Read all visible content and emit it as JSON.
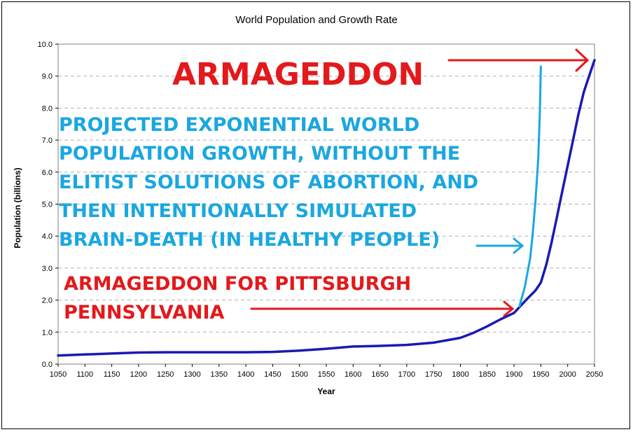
{
  "chart_data": {
    "type": "line",
    "title": "World Population and Growth Rate",
    "xlabel": "Year",
    "ylabel": "Population (billions)",
    "xlim": [
      1050,
      2050
    ],
    "ylim": [
      0,
      10
    ],
    "grid": true,
    "x_ticks": [
      "1050",
      "1100",
      "1150",
      "1200",
      "1250",
      "1300",
      "1350",
      "1400",
      "1450",
      "1500",
      "1550",
      "1600",
      "1650",
      "1700",
      "1750",
      "1800",
      "1850",
      "1900",
      "1950",
      "2000",
      "2050"
    ],
    "y_ticks": [
      "0.0",
      "1.0",
      "2.0",
      "3.0",
      "4.0",
      "5.0",
      "6.0",
      "7.0",
      "8.0",
      "9.0",
      "10.0"
    ],
    "series": [
      {
        "color": "#1a1ab3",
        "x": [
          1050,
          1100,
          1150,
          1200,
          1250,
          1300,
          1350,
          1400,
          1450,
          1500,
          1550,
          1600,
          1650,
          1700,
          1750,
          1800,
          1825,
          1850,
          1875,
          1900,
          1910,
          1925,
          1940,
          1950,
          1960,
          1970,
          1980,
          1990,
          2000,
          2010,
          2020,
          2030,
          2040,
          2050
        ],
        "y": [
          0.27,
          0.3,
          0.33,
          0.36,
          0.37,
          0.37,
          0.37,
          0.37,
          0.38,
          0.42,
          0.48,
          0.55,
          0.57,
          0.6,
          0.67,
          0.82,
          0.98,
          1.18,
          1.4,
          1.6,
          1.78,
          2.05,
          2.3,
          2.55,
          3.1,
          3.8,
          4.6,
          5.4,
          6.2,
          7.0,
          7.8,
          8.5,
          9.0,
          9.5
        ]
      },
      {
        "color": "#1aa7e0",
        "x": [
          1910,
          1920,
          1930,
          1935,
          1940,
          1945,
          1948,
          1950
        ],
        "y": [
          1.8,
          2.4,
          3.3,
          4.1,
          5.1,
          6.4,
          7.8,
          9.3
        ]
      }
    ],
    "annotations": [
      {
        "text": "ARMAGEDDON",
        "color": "#e3191c"
      },
      {
        "lines": [
          "PROJECTED EXPONENTIAL WORLD",
          "POPULATION GROWTH, WITHOUT THE",
          "ELITIST SOLUTIONS OF ABORTION, AND",
          "THEN INTENTIONALLY SIMULATED",
          "BRAIN-DEATH (IN HEALTHY PEOPLE)"
        ],
        "color": "#1aa7e0"
      },
      {
        "lines": [
          "ARMAGEDDON FOR PITTSBURGH",
          "PENNSYLVANIA"
        ],
        "color": "#e3191c"
      }
    ]
  }
}
